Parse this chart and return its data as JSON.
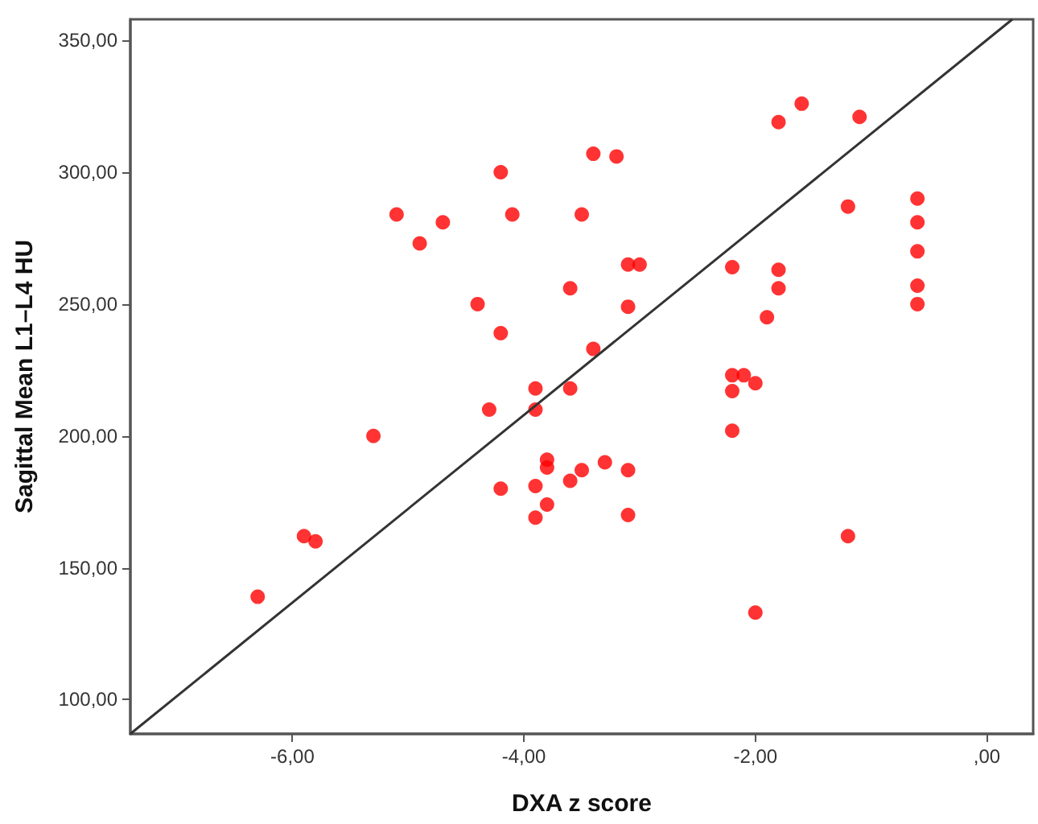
{
  "chart_data": {
    "type": "scatter",
    "xlabel": "DXA z score",
    "ylabel": "Sagittal Mean L1–L4 HU",
    "xlim": [
      -7.4,
      0.4
    ],
    "ylim": [
      87,
      358
    ],
    "xticks": [
      {
        "value": -6,
        "label": "-6,00"
      },
      {
        "value": -4,
        "label": "-4,00"
      },
      {
        "value": -2,
        "label": "-2,00"
      },
      {
        "value": 0,
        "label": ",00"
      }
    ],
    "yticks": [
      {
        "value": 100,
        "label": "100,00"
      },
      {
        "value": 150,
        "label": "150,00"
      },
      {
        "value": 200,
        "label": "200,00"
      },
      {
        "value": 250,
        "label": "250,00"
      },
      {
        "value": 300,
        "label": "300,00"
      },
      {
        "value": 350,
        "label": "350,00"
      }
    ],
    "grid": false,
    "series": [
      {
        "color": "#ff0000",
        "marker": "circle",
        "x": [
          -4.2,
          -5.1,
          -4.7,
          -4.9,
          -4.1,
          -3.5,
          -3.6,
          -4.4,
          -4.2,
          -3.9,
          -3.6,
          -4.3,
          -3.9,
          -3.4,
          -3.2,
          -1.8,
          -1.6,
          -1.1,
          -1.2,
          -0.6,
          -0.6,
          -0.6,
          -0.6,
          -0.6,
          -3.1,
          -3.0,
          -3.1,
          -2.2,
          -1.8,
          -1.8,
          -1.9,
          -3.4,
          -2.2,
          -2.1,
          -2.0,
          -2.2,
          -5.3,
          -3.8,
          -3.8,
          -3.5,
          -3.6,
          -4.2,
          -3.9,
          -3.8,
          -3.9,
          -5.9,
          -5.8,
          -6.3,
          -2.2,
          -3.3,
          -3.1,
          -3.1,
          -1.2,
          -2.0
        ],
        "values": [
          300,
          284,
          281,
          273,
          284,
          284,
          256,
          250,
          239,
          218,
          218,
          210,
          210,
          307,
          306,
          319,
          326,
          321,
          287,
          290,
          281,
          270,
          257,
          250,
          265,
          265,
          249,
          264,
          263,
          256,
          245,
          233,
          223,
          223,
          220,
          217,
          200,
          191,
          188,
          187,
          183,
          180,
          181,
          174,
          169,
          162,
          160,
          139,
          202,
          190,
          187,
          170,
          162,
          133
        ]
      },
      {
        "type": "line",
        "color": "#333333",
        "marker": "none",
        "line_style": "solid",
        "x": [
          -7.4,
          0.22
        ],
        "values": [
          87,
          358
        ]
      }
    ]
  }
}
